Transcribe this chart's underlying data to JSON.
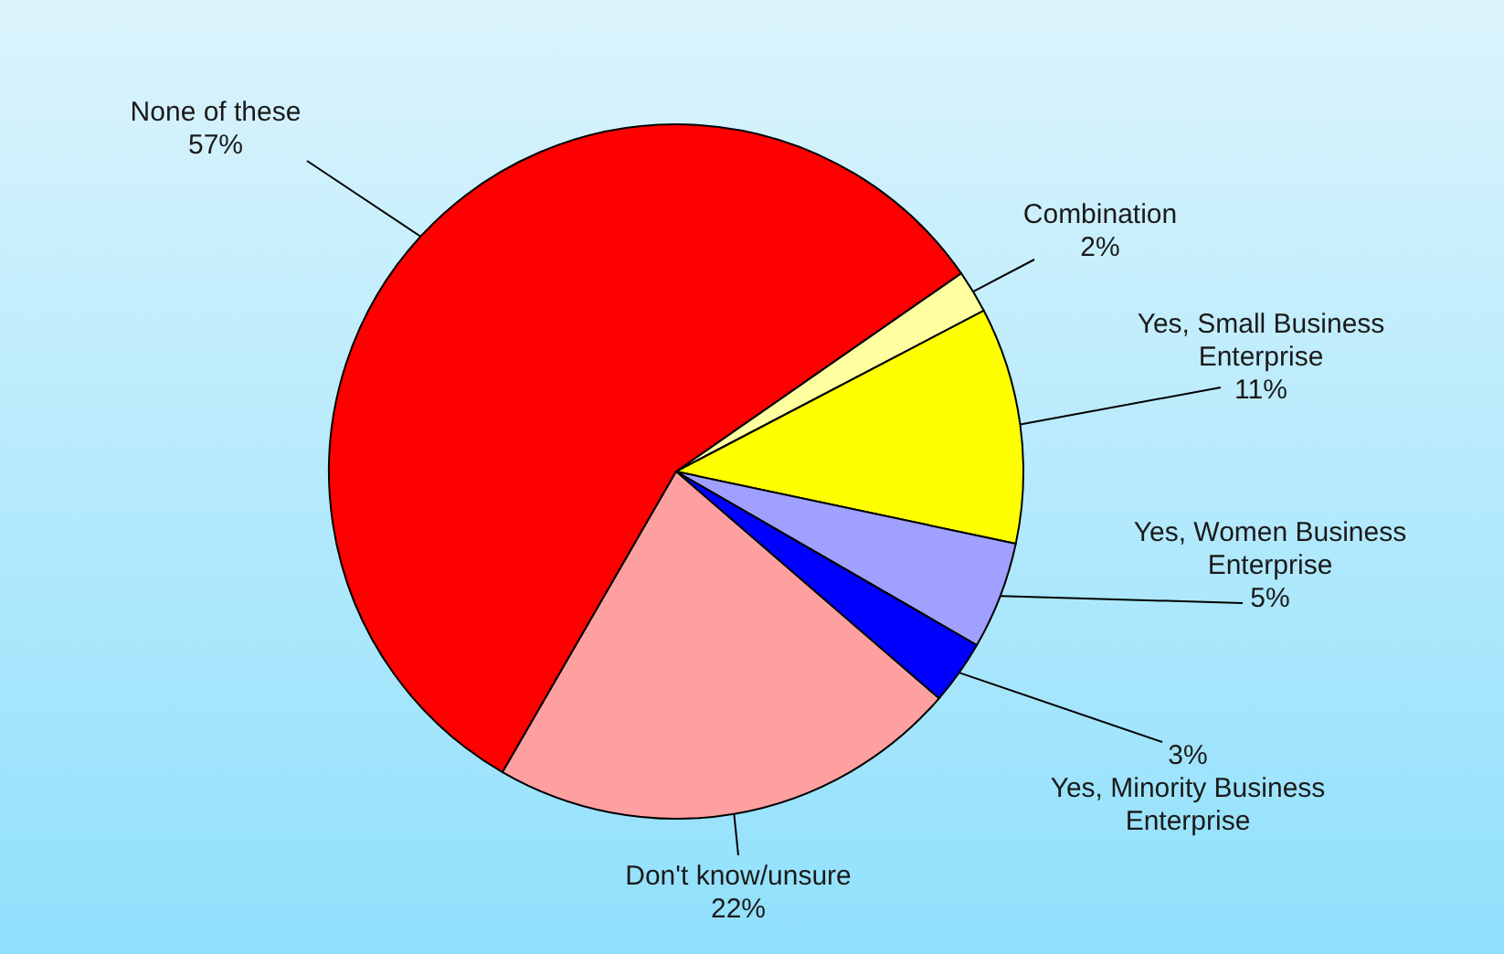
{
  "chart_data": {
    "type": "pie",
    "categories": [
      "None of these",
      "Combination",
      "Yes, Small Business Enterprise",
      "Yes, Women Business Enterprise",
      "Yes, Minority Business Enterprise",
      "Don't know/unsure"
    ],
    "values": [
      57,
      2,
      11,
      5,
      3,
      22
    ],
    "value_labels": [
      "57%",
      "2%",
      "11%",
      "5%",
      "3%",
      "22%"
    ],
    "colors": [
      "#ff0000",
      "#ffffa0",
      "#ffff00",
      "#a0a0ff",
      "#0000ff",
      "#ffa0a0"
    ]
  }
}
